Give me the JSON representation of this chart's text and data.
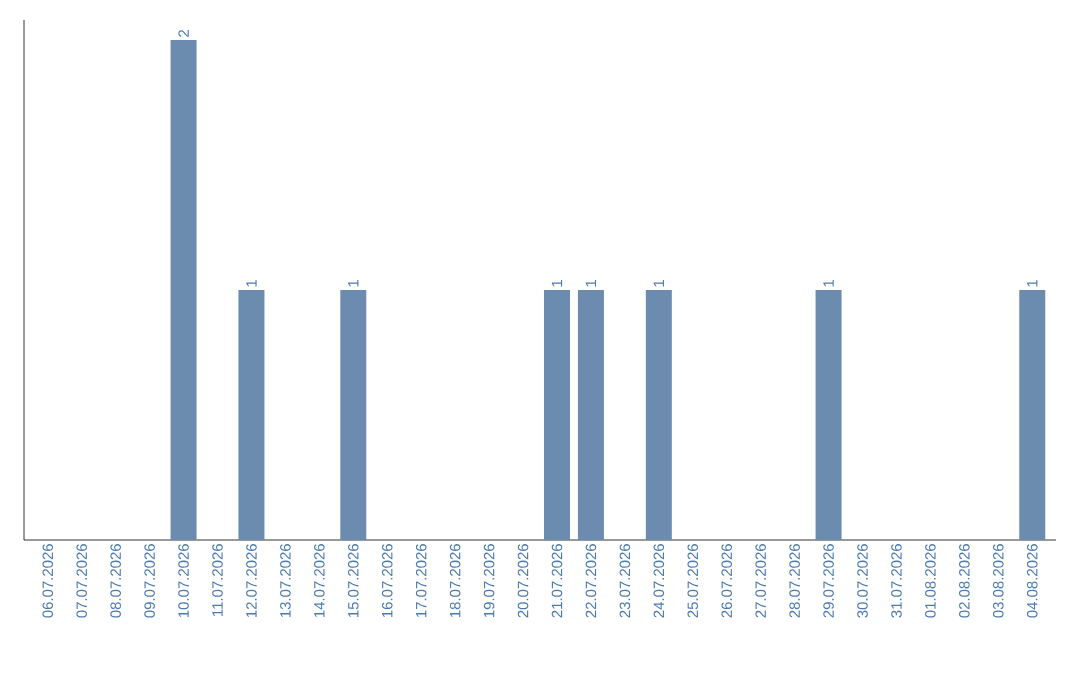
{
  "chart_data": {
    "type": "bar",
    "categories": [
      "06.07.2026",
      "07.07.2026",
      "08.07.2026",
      "09.07.2026",
      "10.07.2026",
      "11.07.2026",
      "12.07.2026",
      "13.07.2026",
      "14.07.2026",
      "15.07.2026",
      "16.07.2026",
      "17.07.2026",
      "18.07.2026",
      "19.07.2026",
      "20.07.2026",
      "21.07.2026",
      "22.07.2026",
      "23.07.2026",
      "24.07.2026",
      "25.07.2026",
      "26.07.2026",
      "27.07.2026",
      "28.07.2026",
      "29.07.2026",
      "30.07.2026",
      "31.07.2026",
      "01.08.2026",
      "02.08.2026",
      "03.08.2026",
      "04.08.2026"
    ],
    "values": [
      0,
      0,
      0,
      0,
      2,
      0,
      1,
      0,
      0,
      1,
      0,
      0,
      0,
      0,
      0,
      1,
      1,
      0,
      1,
      0,
      0,
      0,
      0,
      1,
      0,
      0,
      0,
      0,
      0,
      1
    ],
    "value_labels": [
      null,
      null,
      null,
      null,
      "2",
      null,
      "1",
      null,
      null,
      "1",
      null,
      null,
      null,
      null,
      null,
      "1",
      "1",
      null,
      "1",
      null,
      null,
      null,
      null,
      "1",
      null,
      null,
      null,
      null,
      null,
      "1"
    ],
    "color": "#6b8cae"
  }
}
